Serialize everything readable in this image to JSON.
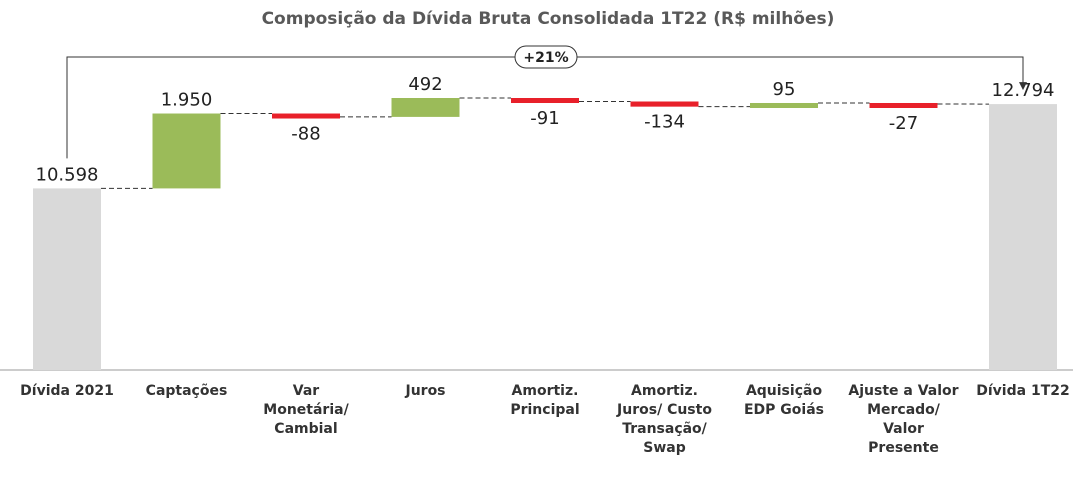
{
  "chart_data": {
    "type": "waterfall",
    "title": "Composição da Dívida Bruta Consolidada 1T22 (R$ milhões)",
    "categories": [
      "Dívida 2021",
      "Captações",
      "Var Monetária/ Cambial",
      "Juros",
      "Amortiz. Principal",
      "Amortiz. Juros/ Custo Transação/ Swap",
      "Aquisição EDP Goiás",
      "Ajuste a Valor Mercado/ Valor Presente",
      "Dívida 1T22"
    ],
    "values": [
      10598,
      1950,
      -88,
      492,
      -91,
      -134,
      95,
      -27,
      12794
    ],
    "value_labels": [
      "10.598",
      "1.950",
      "-88",
      "492",
      "-91",
      "-134",
      "95",
      "-27",
      "12.794"
    ],
    "total_indices": [
      0,
      8
    ],
    "total_color": "#d9d9d9",
    "increase_color": "#9bbb59",
    "decrease_color": "#e8202a",
    "ylim": [
      5870,
      12900
    ],
    "annotation": "+21%"
  }
}
